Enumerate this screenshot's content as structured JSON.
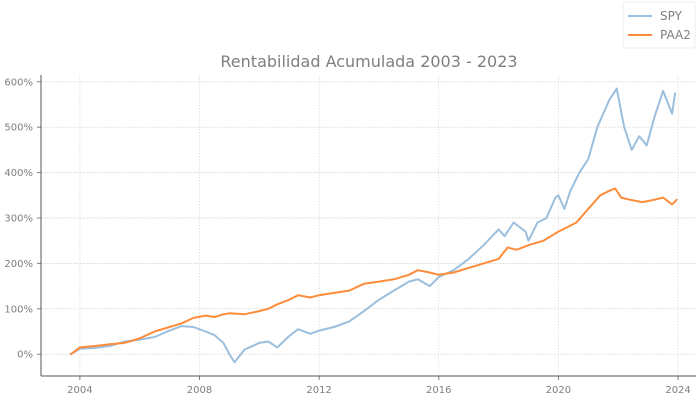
{
  "chart_data": {
    "type": "line",
    "title": "Rentabilidad Acumulada 2003 - 2023",
    "xlabel": "",
    "ylabel": "",
    "xlim": [
      2002.7,
      2024.6
    ],
    "ylim": [
      -48,
      615
    ],
    "x_ticks": [
      2004,
      2008,
      2012,
      2016,
      2020,
      2024
    ],
    "y_ticks": [
      0,
      100,
      200,
      300,
      400,
      500,
      600
    ],
    "x_tick_labels": [
      "2004",
      "2008",
      "2012",
      "2016",
      "2020",
      "2024"
    ],
    "y_tick_labels": [
      "0%",
      "100%",
      "200%",
      "300%",
      "400%",
      "500%",
      "600%"
    ],
    "grid": true,
    "legend": {
      "position": "top-right",
      "entries": [
        "SPY",
        "PAA2"
      ]
    },
    "series": [
      {
        "name": "SPY",
        "color": "#9bbfdd",
        "x": [
          2003.7,
          2004.0,
          2004.5,
          2005.0,
          2005.5,
          2006.0,
          2006.5,
          2007.0,
          2007.4,
          2007.8,
          2008.2,
          2008.5,
          2008.8,
          2009.0,
          2009.17,
          2009.5,
          2010.0,
          2010.3,
          2010.6,
          2011.0,
          2011.3,
          2011.7,
          2012.0,
          2012.5,
          2013.0,
          2013.5,
          2014.0,
          2014.5,
          2015.0,
          2015.3,
          2015.7,
          2016.0,
          2016.5,
          2017.0,
          2017.5,
          2018.0,
          2018.2,
          2018.5,
          2018.9,
          2019.0,
          2019.3,
          2019.6,
          2019.9,
          2020.0,
          2020.2,
          2020.4,
          2020.7,
          2021.0,
          2021.3,
          2021.7,
          2021.95,
          2022.2,
          2022.45,
          2022.7,
          2022.95,
          2023.2,
          2023.5,
          2023.8,
          2023.9
        ],
        "values": [
          0,
          12,
          14,
          18,
          28,
          32,
          38,
          52,
          62,
          60,
          50,
          42,
          25,
          0,
          -18,
          10,
          25,
          28,
          15,
          40,
          55,
          45,
          52,
          60,
          72,
          95,
          120,
          140,
          160,
          165,
          150,
          170,
          185,
          210,
          240,
          275,
          260,
          290,
          270,
          250,
          290,
          300,
          345,
          350,
          320,
          360,
          400,
          430,
          500,
          560,
          585,
          500,
          450,
          480,
          460,
          520,
          580,
          530,
          575
        ]
      },
      {
        "name": "PAA2",
        "color": "#ff8c3a",
        "x": [
          2003.7,
          2004.0,
          2004.5,
          2005.0,
          2005.5,
          2006.0,
          2006.5,
          2007.0,
          2007.4,
          2007.8,
          2008.2,
          2008.5,
          2008.8,
          2009.0,
          2009.5,
          2010.0,
          2010.3,
          2010.6,
          2011.0,
          2011.3,
          2011.7,
          2012.0,
          2012.5,
          2013.0,
          2013.5,
          2014.0,
          2014.5,
          2015.0,
          2015.3,
          2015.7,
          2016.0,
          2016.5,
          2017.0,
          2017.5,
          2018.0,
          2018.3,
          2018.6,
          2019.0,
          2019.5,
          2020.0,
          2020.3,
          2020.6,
          2021.0,
          2021.4,
          2021.7,
          2021.9,
          2022.1,
          2022.4,
          2022.8,
          2023.2,
          2023.5,
          2023.8,
          2023.95
        ],
        "values": [
          0,
          15,
          18,
          22,
          25,
          35,
          50,
          60,
          68,
          80,
          85,
          82,
          88,
          90,
          88,
          95,
          100,
          110,
          120,
          130,
          125,
          130,
          135,
          140,
          155,
          160,
          165,
          175,
          185,
          180,
          175,
          180,
          190,
          200,
          210,
          235,
          230,
          240,
          250,
          270,
          280,
          290,
          320,
          350,
          360,
          365,
          345,
          340,
          335,
          340,
          345,
          330,
          340
        ]
      }
    ]
  }
}
